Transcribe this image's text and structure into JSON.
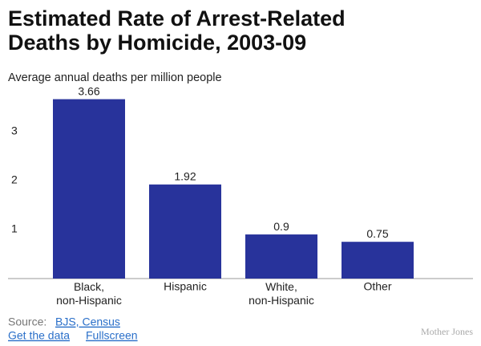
{
  "chart_data": {
    "type": "bar",
    "title": "Estimated Rate of Arrest-Related\nDeaths by Homicide, 2003-09",
    "subtitle": "Average annual deaths per million people",
    "categories": [
      "Black,\nnon-Hispanic",
      "Hispanic",
      "White,\nnon-Hispanic",
      "Other"
    ],
    "values": [
      3.66,
      1.92,
      0.9,
      0.75
    ],
    "color": "#28339b",
    "ylim": [
      0,
      3.8
    ],
    "yticks": [
      1,
      2,
      3
    ],
    "grid": false
  },
  "footer": {
    "source_label": "Source:",
    "source_link": "BJS, Census",
    "links": [
      "Get the data",
      "Fullscreen"
    ],
    "logo": "Mother Jones"
  }
}
